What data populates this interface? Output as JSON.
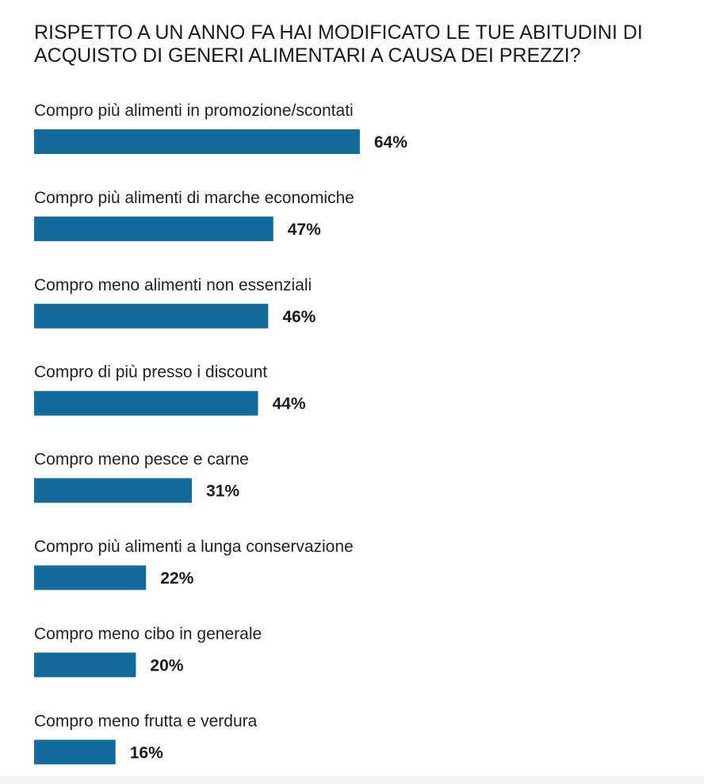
{
  "chart_data": {
    "type": "bar",
    "title": "RISPETTO A UN ANNO FA HAI MODIFICATO LE TUE ABITUDINI DI ACQUISTO DI GENERI ALIMENTARI A CAUSA DEI PREZZI?",
    "categories": [
      "Compro più alimenti in promozione/scontati",
      "Compro più alimenti di marche economiche",
      "Compro meno alimenti non essenziali",
      "Compro di più presso i discount",
      "Compro meno pesce e carne",
      "Compro più alimenti a lunga conservazione",
      "Compro meno cibo in generale",
      "Compro meno frutta e verdura"
    ],
    "values": [
      64,
      47,
      46,
      44,
      31,
      22,
      20,
      16
    ],
    "value_labels": [
      "64%",
      "47%",
      "46%",
      "44%",
      "31%",
      "22%",
      "20%",
      "16%"
    ],
    "unit": "%",
    "orientation": "horizontal",
    "xlim": [
      0,
      100
    ],
    "grid": false,
    "legend": "none",
    "bar_color": "#136b9c"
  }
}
